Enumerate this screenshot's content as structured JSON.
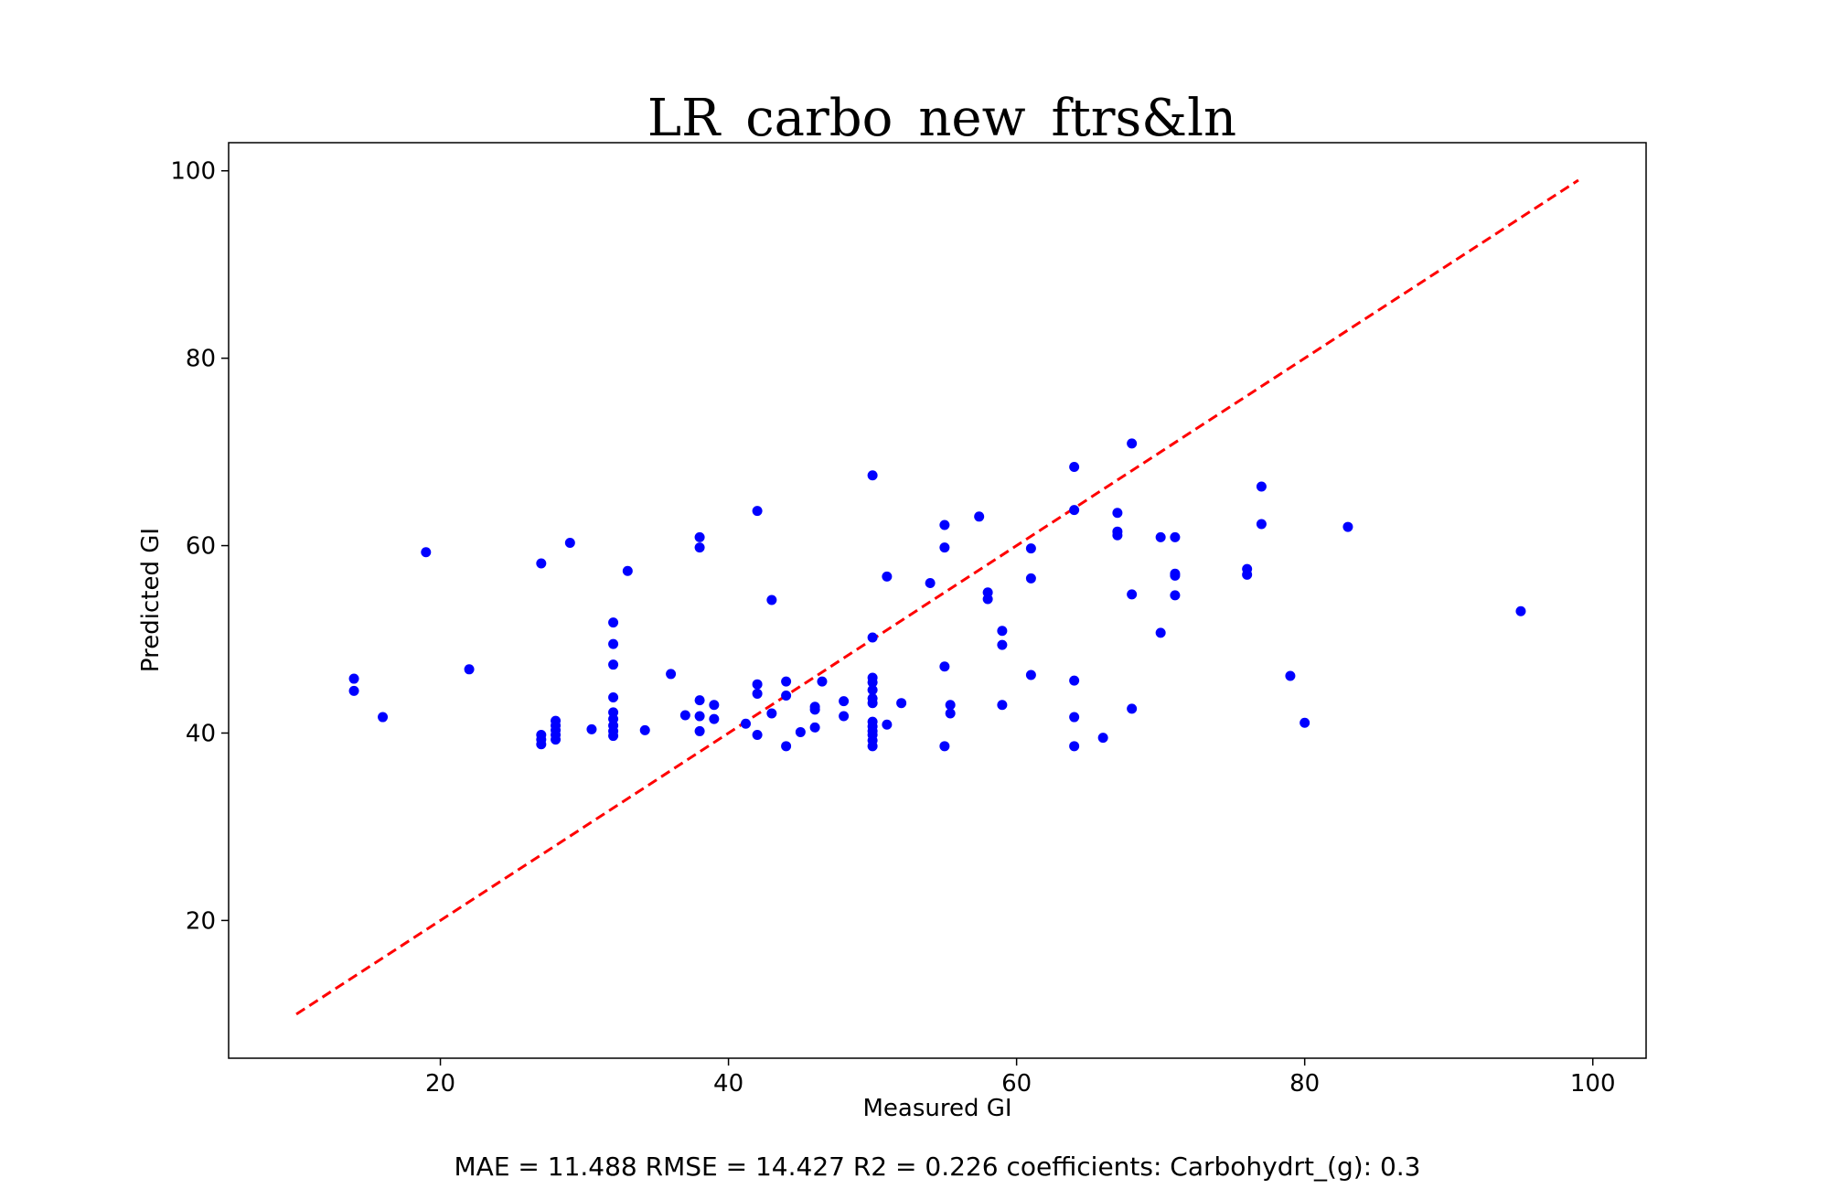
{
  "chart_data": {
    "type": "scatter",
    "title": "LR_carbo_new_ftrs&ln",
    "xlabel": "Measured GI",
    "ylabel": "Predicted GI",
    "xlim": [
      5.3,
      103.7
    ],
    "ylim": [
      5.3,
      103.0
    ],
    "xticks": [
      20,
      40,
      60,
      80,
      100
    ],
    "yticks": [
      20,
      40,
      60,
      80,
      100
    ],
    "grid": false,
    "point_color": "#0000ff",
    "reference_line": {
      "x": [
        10,
        99
      ],
      "y": [
        10,
        99
      ],
      "color": "#ff0000",
      "style": "dashed"
    },
    "points": [
      [
        14,
        45.8
      ],
      [
        14,
        44.5
      ],
      [
        16,
        41.7
      ],
      [
        19,
        59.3
      ],
      [
        22,
        46.8
      ],
      [
        27,
        58.1
      ],
      [
        27,
        39.8
      ],
      [
        27,
        39.3
      ],
      [
        27,
        38.8
      ],
      [
        28,
        41.3
      ],
      [
        28,
        40.8
      ],
      [
        28,
        40.3
      ],
      [
        28,
        39.8
      ],
      [
        28,
        39.3
      ],
      [
        29,
        60.3
      ],
      [
        30.5,
        40.4
      ],
      [
        32,
        51.8
      ],
      [
        32,
        49.5
      ],
      [
        32,
        47.3
      ],
      [
        32,
        43.8
      ],
      [
        32,
        42.2
      ],
      [
        32,
        41.5
      ],
      [
        32,
        40.8
      ],
      [
        32,
        40.2
      ],
      [
        32,
        39.7
      ],
      [
        33,
        57.3
      ],
      [
        34.2,
        40.3
      ],
      [
        36,
        46.3
      ],
      [
        37,
        41.9
      ],
      [
        38,
        60.9
      ],
      [
        38,
        59.8
      ],
      [
        38,
        43.5
      ],
      [
        38,
        41.8
      ],
      [
        38,
        40.2
      ],
      [
        39,
        43.0
      ],
      [
        39,
        41.5
      ],
      [
        41.2,
        41.0
      ],
      [
        42,
        63.7
      ],
      [
        42,
        45.2
      ],
      [
        42,
        44.2
      ],
      [
        42,
        39.8
      ],
      [
        43,
        54.2
      ],
      [
        43,
        42.1
      ],
      [
        44,
        45.5
      ],
      [
        44,
        44.0
      ],
      [
        44,
        38.6
      ],
      [
        45,
        40.1
      ],
      [
        46,
        42.8
      ],
      [
        46,
        42.5
      ],
      [
        46,
        40.6
      ],
      [
        46.5,
        45.5
      ],
      [
        48,
        43.4
      ],
      [
        48,
        41.8
      ],
      [
        50,
        67.5
      ],
      [
        50,
        50.2
      ],
      [
        50,
        45.9
      ],
      [
        50,
        45.4
      ],
      [
        50,
        44.6
      ],
      [
        50,
        43.7
      ],
      [
        50,
        43.2
      ],
      [
        50,
        41.2
      ],
      [
        50,
        40.7
      ],
      [
        50,
        40.2
      ],
      [
        50,
        39.8
      ],
      [
        50,
        39.2
      ],
      [
        50,
        38.6
      ],
      [
        51,
        56.7
      ],
      [
        51,
        40.9
      ],
      [
        52,
        43.2
      ],
      [
        54,
        56.0
      ],
      [
        55,
        62.2
      ],
      [
        55,
        59.8
      ],
      [
        55,
        47.1
      ],
      [
        55,
        38.6
      ],
      [
        55.4,
        43.0
      ],
      [
        55.4,
        42.1
      ],
      [
        57.4,
        63.1
      ],
      [
        58,
        55.0
      ],
      [
        58,
        54.3
      ],
      [
        59,
        50.9
      ],
      [
        59,
        49.4
      ],
      [
        59,
        43.0
      ],
      [
        61,
        59.7
      ],
      [
        61,
        56.5
      ],
      [
        61,
        46.2
      ],
      [
        64,
        68.4
      ],
      [
        64,
        63.8
      ],
      [
        64,
        45.6
      ],
      [
        64,
        41.7
      ],
      [
        64,
        38.6
      ],
      [
        66,
        39.5
      ],
      [
        67,
        63.5
      ],
      [
        67,
        61.5
      ],
      [
        67,
        61.1
      ],
      [
        68,
        70.9
      ],
      [
        68,
        54.8
      ],
      [
        68,
        42.6
      ],
      [
        70,
        60.9
      ],
      [
        70,
        50.7
      ],
      [
        71,
        60.9
      ],
      [
        71,
        57.0
      ],
      [
        71,
        56.8
      ],
      [
        71,
        54.7
      ],
      [
        76,
        57.5
      ],
      [
        76,
        56.9
      ],
      [
        77,
        66.3
      ],
      [
        77,
        62.3
      ],
      [
        79,
        46.1
      ],
      [
        80,
        41.1
      ],
      [
        83,
        62.0
      ],
      [
        95,
        53.0
      ]
    ]
  },
  "footer": {
    "metrics": "MAE = 11.488 RMSE = 14.427 R2 = 0.226 coefficients: Carbohydrt_(g): 0.3"
  }
}
